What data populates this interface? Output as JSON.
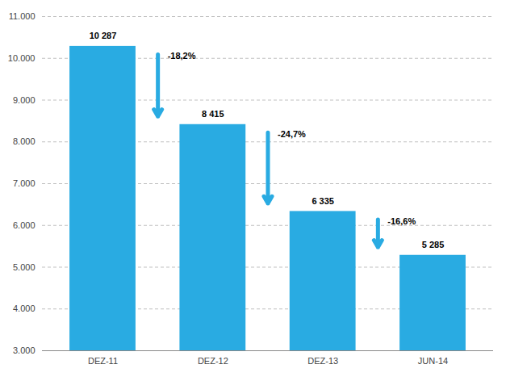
{
  "chart_data": {
    "type": "bar",
    "categories": [
      "DEZ-11",
      "DEZ-12",
      "DEZ-13",
      "JUN-14"
    ],
    "values": [
      10287,
      8415,
      6335,
      5285
    ],
    "value_labels": [
      "10 287",
      "8 415",
      "6 335",
      "5 285"
    ],
    "data_labels": true,
    "color": "#29ABE2",
    "ylim": [
      3000,
      11000
    ],
    "yticks": [
      {
        "value": 3000,
        "label": "3.000"
      },
      {
        "value": 4000,
        "label": "4.000"
      },
      {
        "value": 5000,
        "label": "5.000"
      },
      {
        "value": 6000,
        "label": "6.000"
      },
      {
        "value": 7000,
        "label": "7.000"
      },
      {
        "value": 8000,
        "label": "8.000"
      },
      {
        "value": 9000,
        "label": "9.000"
      },
      {
        "value": 10000,
        "label": "10.000"
      },
      {
        "value": 11000,
        "label": "11.000"
      }
    ],
    "grid": true,
    "annotations": [
      {
        "text": "-18,2%",
        "from": "DEZ-11",
        "to": "DEZ-12"
      },
      {
        "text": "-24,7%",
        "from": "DEZ-12",
        "to": "DEZ-13"
      },
      {
        "text": "-16,6%",
        "from": "DEZ-13",
        "to": "JUN-14"
      }
    ]
  }
}
